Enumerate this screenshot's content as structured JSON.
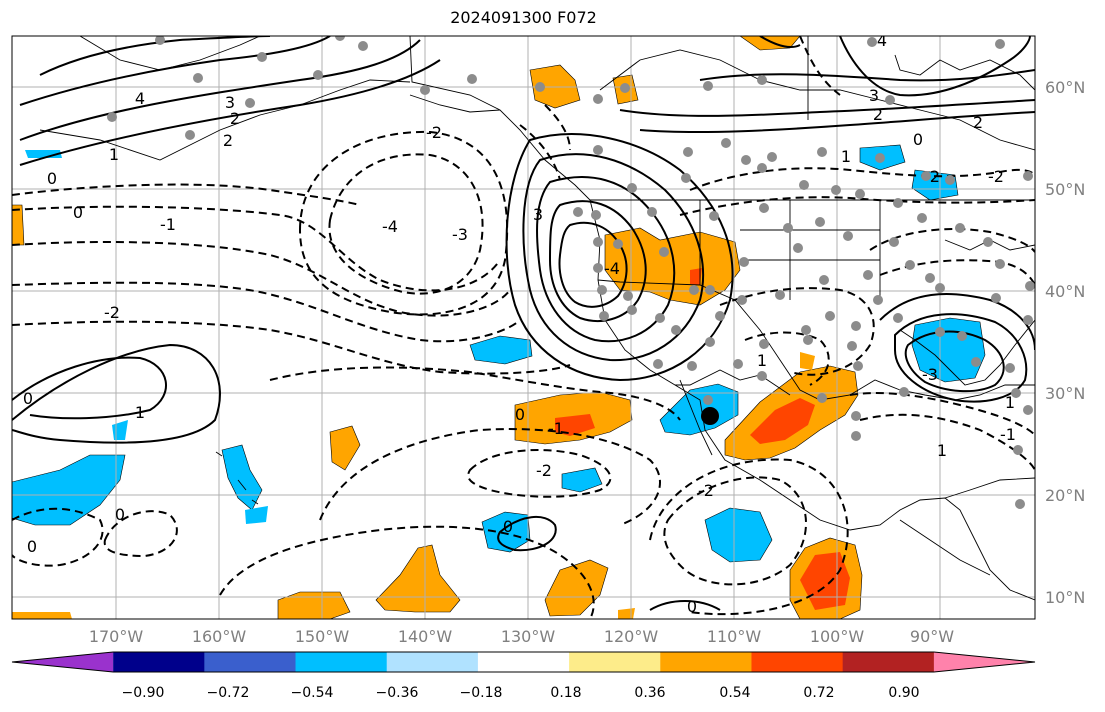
{
  "title": "2024091300 F072",
  "lat_labels": [
    "60°N",
    "50°N",
    "40°N",
    "30°N",
    "20°N",
    "10°N"
  ],
  "lon_labels": [
    "170°W",
    "160°W",
    "150°W",
    "140°W",
    "130°W",
    "120°W",
    "110°W",
    "100°W",
    "90°W"
  ],
  "colorbar": {
    "ticks": [
      "−0.90",
      "−0.72",
      "−0.54",
      "−0.36",
      "−0.18",
      "0.18",
      "0.36",
      "0.54",
      "0.72",
      "0.90"
    ],
    "colors": [
      "#9a32cd",
      "#00008b",
      "#3a5fcd",
      "#00bfff",
      "#b0e2ff",
      "#ffffff",
      "#fdec8a",
      "#ffa500",
      "#ff4500",
      "#b22222",
      "#ff82ab"
    ]
  },
  "contour_labels": [
    "4",
    "3",
    "2",
    "1",
    "0",
    "-1",
    "-2",
    "-3",
    "-4"
  ],
  "marker": {
    "lat": 28,
    "lon": -111,
    "color": "#000000"
  }
}
